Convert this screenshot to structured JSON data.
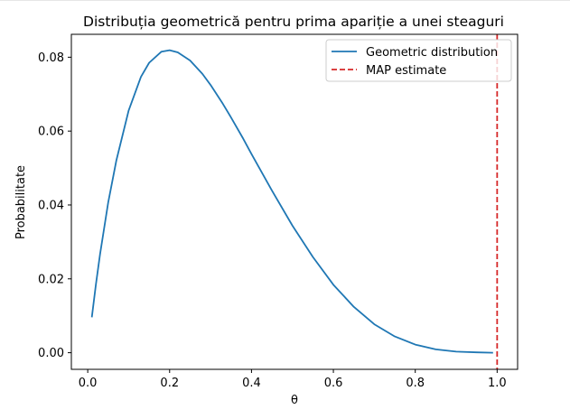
{
  "chart_data": {
    "type": "line",
    "title": "Distribuția geometrică pentru prima apariție a unei steaguri",
    "xlabel": "θ",
    "ylabel": "Probabilitate",
    "xlim": [
      -0.04,
      1.05
    ],
    "ylim": [
      -0.0045,
      0.0862
    ],
    "xticks": [
      0.0,
      0.2,
      0.4,
      0.6,
      0.8,
      1.0
    ],
    "xtick_labels": [
      "0.0",
      "0.2",
      "0.4",
      "0.6",
      "0.8",
      "1.0"
    ],
    "yticks": [
      0.0,
      0.02,
      0.04,
      0.06,
      0.08
    ],
    "ytick_labels": [
      "0.00",
      "0.02",
      "0.04",
      "0.06",
      "0.08"
    ],
    "grid": false,
    "legend_position": "upper right",
    "series": [
      {
        "name": "Geometric distribution",
        "color": "#1f77b4",
        "style": "solid",
        "x": [
          0.01,
          0.02,
          0.03,
          0.05,
          0.07,
          0.1,
          0.13,
          0.15,
          0.18,
          0.2,
          0.22,
          0.25,
          0.28,
          0.3,
          0.33,
          0.35,
          0.38,
          0.4,
          0.45,
          0.5,
          0.55,
          0.6,
          0.65,
          0.7,
          0.75,
          0.8,
          0.85,
          0.9,
          0.95,
          0.99
        ],
        "y": [
          0.0096,
          0.0185,
          0.0266,
          0.0407,
          0.0521,
          0.0656,
          0.0747,
          0.0785,
          0.0815,
          0.0819,
          0.0813,
          0.0791,
          0.0755,
          0.0725,
          0.0674,
          0.0637,
          0.0579,
          0.0538,
          0.0439,
          0.0344,
          0.0259,
          0.0184,
          0.0124,
          0.0077,
          0.0044,
          0.0022,
          0.0009,
          0.0003,
          0.0001,
          0.0
        ]
      },
      {
        "name": "MAP estimate",
        "color": "#d62728",
        "style": "dashed",
        "type": "vline",
        "x": 1.0
      }
    ]
  }
}
